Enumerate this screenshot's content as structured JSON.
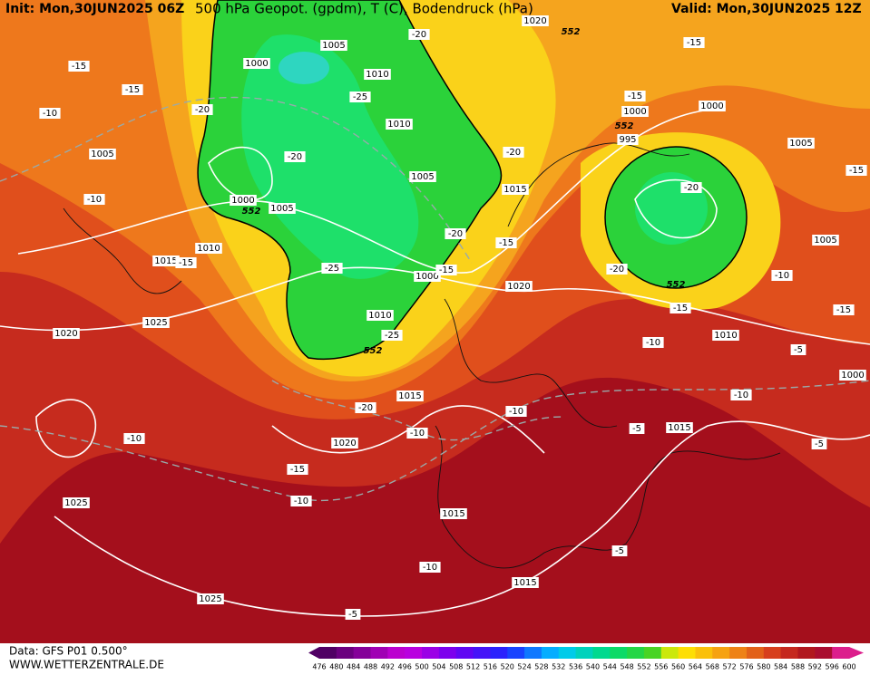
{
  "header": {
    "init": "Init: Mon,30JUN2025 06Z",
    "title": "500 hPa Geopot. (gpdm), T (C), Bodendruck (hPa)",
    "valid": "Valid: Mon,30JUN2025 12Z"
  },
  "footer": {
    "data": "Data: GFS P01 0.500°",
    "site": "WWW.WETTERZENTRALE.DE"
  },
  "colorbar": {
    "labels": [
      476,
      480,
      484,
      488,
      492,
      496,
      500,
      504,
      508,
      512,
      516,
      520,
      524,
      528,
      532,
      536,
      540,
      544,
      548,
      552,
      556,
      560,
      564,
      568,
      572,
      576,
      580,
      584,
      588,
      592,
      596,
      600
    ]
  },
  "contour_labels": [
    "1005",
    "1000",
    "1010",
    "1010",
    "1005",
    "1000",
    "1005",
    "1010",
    "1015",
    "1025",
    "1020",
    "1005",
    "1020",
    "1010",
    "1015",
    "1020",
    "1015",
    "1015",
    "1025",
    "1025",
    "1015",
    "1000",
    "1000",
    "1000",
    "1005",
    "1005",
    "1010",
    "1015",
    "1000",
    "1020",
    "995",
    "-15",
    "-15",
    "-10",
    "-10",
    "-15",
    "-20",
    "-25",
    "-20",
    "-20",
    "-25",
    "-20",
    "-15",
    "-25",
    "-20",
    "-10",
    "-15",
    "-10",
    "-10",
    "-10",
    "-10",
    "-5",
    "-5",
    "-5",
    "-10",
    "-15",
    "-20",
    "-15",
    "-20",
    "-15",
    "-15",
    "-20",
    "-10",
    "-15",
    "-5",
    "-10",
    "-5",
    "-15"
  ],
  "height_labels": [
    "552",
    "552",
    "552",
    "552",
    "552"
  ]
}
